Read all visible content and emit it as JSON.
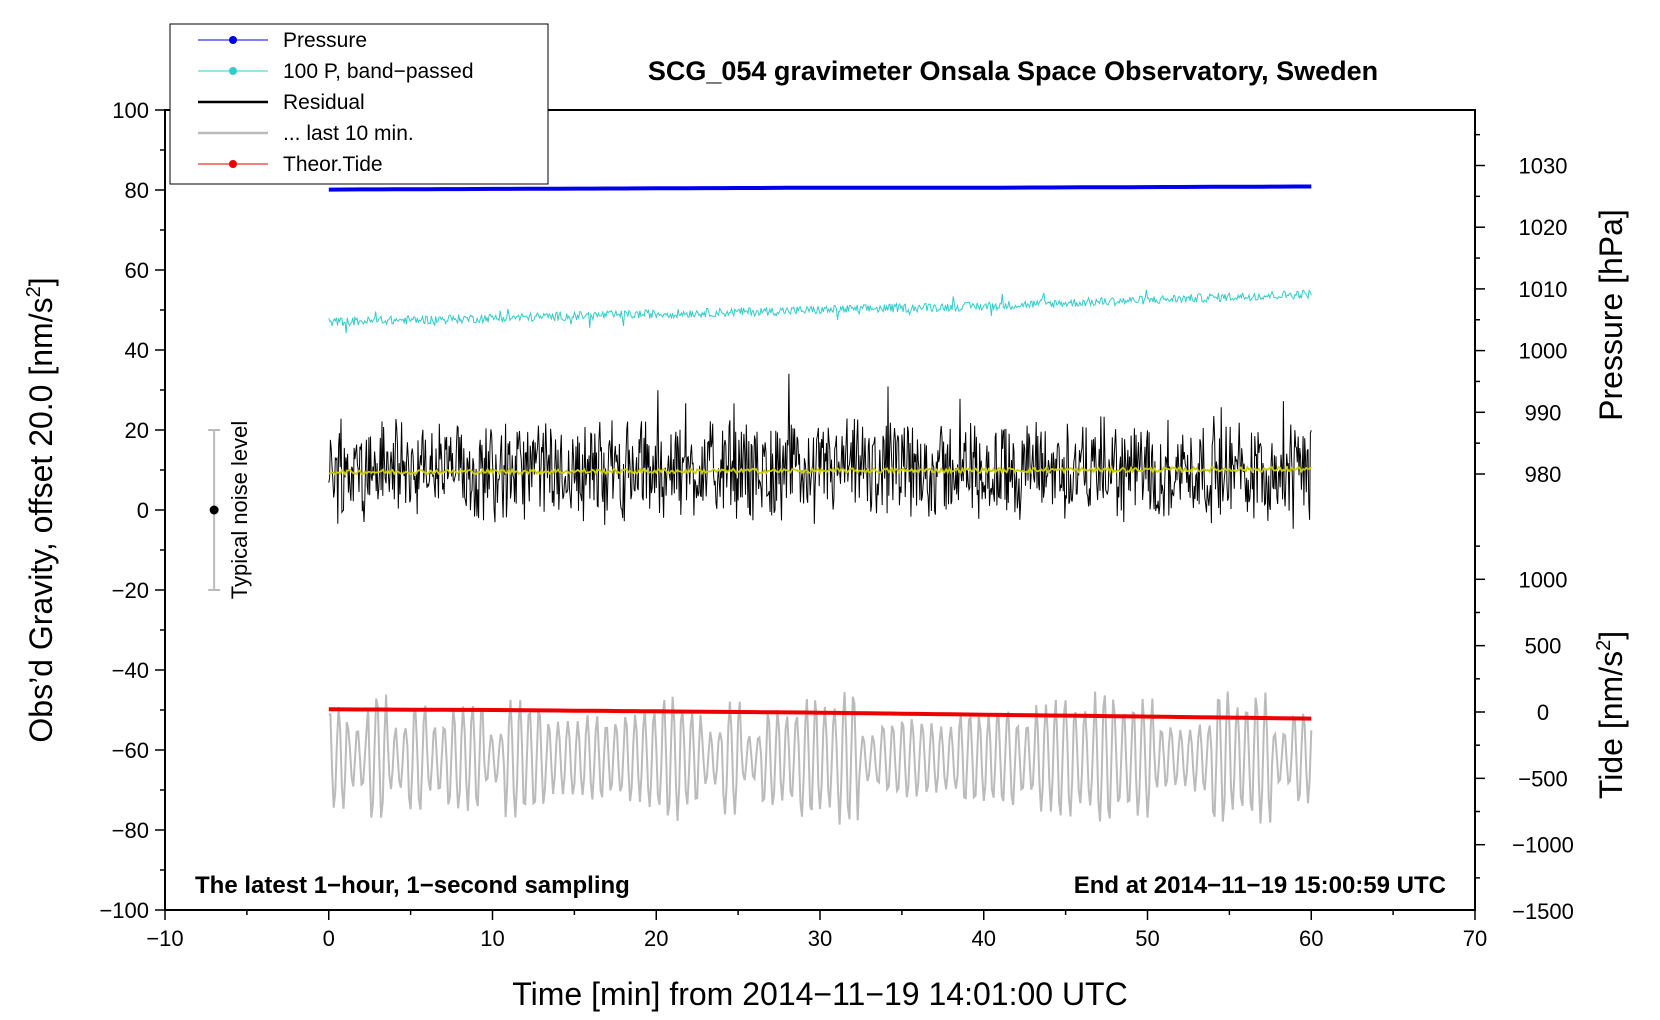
{
  "chart_data": {
    "type": "line",
    "title": "SCG_054 gravimeter Onsala Space Observatory, Sweden",
    "xlabel": "Time [min] from 2014−11−19 14:01:00 UTC",
    "ylabel": "Obs’d Gravity, offset 20.0 [nm/s",
    "ylabel_sup": "2",
    "ylabel_end": "]",
    "right_label_pressure": "Pressure [hPa]",
    "right_label_tide": "Tide [nm/s",
    "right_label_tide_sup": "2",
    "right_label_tide_end": "]",
    "xlim": [
      -10,
      70
    ],
    "ylim": [
      -100,
      100
    ],
    "pressure_axis": [
      975,
      1035
    ],
    "tide_axis": [
      -1500,
      1500
    ],
    "x_ticks": [
      "−10",
      "0",
      "10",
      "20",
      "30",
      "40",
      "50",
      "60",
      "70"
    ],
    "y_ticks": [
      "100",
      "80",
      "60",
      "40",
      "20",
      "0",
      "−20",
      "−40",
      "−60",
      "−80",
      "−100"
    ],
    "pressure_ticks": [
      "1030",
      "1020",
      "1010",
      "1000",
      "990",
      "980"
    ],
    "tide_ticks": [
      "1000",
      "500",
      "0",
      "−500",
      "−1000",
      "−1500"
    ],
    "note_left": "The latest 1−hour, 1−second sampling",
    "note_right": "End at 2014−11−19 15:00:59 UTC",
    "noise_label": "Typical noise level",
    "noise_bar": {
      "x": -7,
      "center": 0,
      "low": -20,
      "high": 20
    },
    "legend": [
      {
        "label": "Pressure",
        "color": "#0000ee",
        "marker": true
      },
      {
        "label": "100 P, band−passed",
        "color": "#33cccc",
        "marker": true
      },
      {
        "label": "Residual",
        "color": "#000000",
        "marker": false
      },
      {
        "label": "... last 10 min.",
        "color": "#bbbbbb",
        "marker": false
      },
      {
        "label": "Theor.Tide",
        "color": "#ee0000",
        "marker": true
      }
    ],
    "series": [
      {
        "name": "Pressure",
        "axis": "pressure",
        "color": "#0000ee",
        "x": [
          0,
          10,
          20,
          30,
          40,
          50,
          60
        ],
        "values": [
          1026.1,
          1026.2,
          1026.3,
          1026.4,
          1026.4,
          1026.5,
          1026.6
        ]
      },
      {
        "name": "100 P, band-passed",
        "axis": "gravity",
        "color": "#33cccc",
        "x": [
          0,
          10,
          20,
          30,
          40,
          50,
          60
        ],
        "values": [
          47,
          48,
          49,
          50,
          51,
          52.5,
          54
        ]
      },
      {
        "name": "Residual",
        "axis": "gravity",
        "color": "#000000",
        "x": [
          0,
          60
        ],
        "values": [
          10,
          10
        ],
        "amplitude": 12
      },
      {
        "name": "Residual smoothed",
        "axis": "gravity",
        "color": "#cccc00",
        "x": [
          0,
          30,
          60
        ],
        "values": [
          9.5,
          9.8,
          10.2
        ]
      },
      {
        "name": "... last 10 min.",
        "axis": "gravity",
        "color": "#bbbbbb",
        "x": [
          0,
          60
        ],
        "values": [
          -62,
          -62
        ],
        "amplitude": 13
      },
      {
        "name": "Theor.Tide",
        "axis": "tide",
        "color": "#ee0000",
        "x": [
          0,
          10,
          20,
          30,
          40,
          50,
          60
        ],
        "values": [
          20,
          15,
          5,
          -5,
          -20,
          -35,
          -50
        ]
      }
    ]
  }
}
